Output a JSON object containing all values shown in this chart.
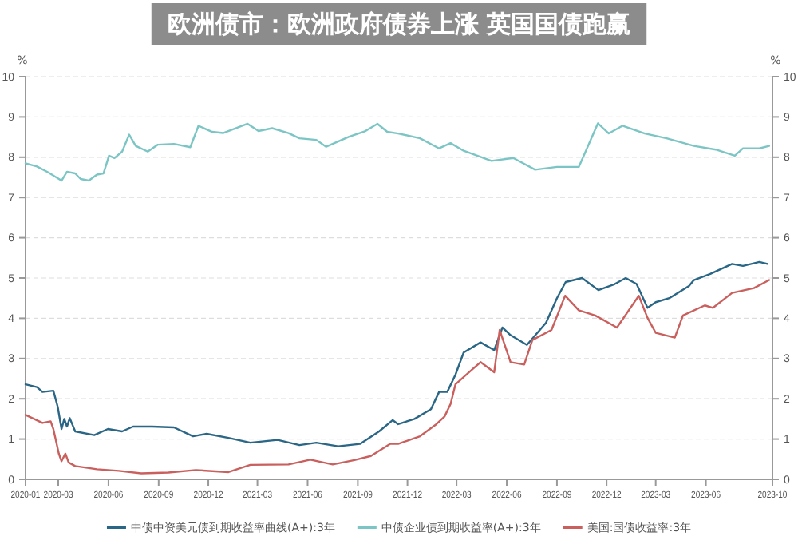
{
  "chart_data": {
    "type": "line",
    "title": "欧洲债市：欧洲政府债券上涨 英国国债跑赢",
    "ylabel": "%",
    "y2label": "%",
    "xlim": [
      "2020-01-01",
      "2023-10-01"
    ],
    "xticks": [
      "2020-01",
      "2020-03",
      "2020-06",
      "2020-09",
      "2020-12",
      "2021-03",
      "2021-06",
      "2021-09",
      "2021-12",
      "2022-03",
      "2022-06",
      "2022-09",
      "2022-12",
      "2023-03",
      "2023-06",
      "2023-10"
    ],
    "ylim": [
      0,
      10
    ],
    "yticks": [
      0,
      1,
      2,
      3,
      4,
      5,
      6,
      7,
      8,
      9,
      10
    ],
    "y2lim": [
      0,
      10
    ],
    "y2ticks": [
      0,
      1,
      2,
      3,
      4,
      5,
      6,
      7,
      8,
      9,
      10
    ],
    "grid": "y",
    "legend": "bottom",
    "marker": "none",
    "line_style": "solid",
    "series": [
      {
        "name": "中债中资美元债到期收益率曲线(A+):3年",
        "color": "#2a6685",
        "x": [
          "2020-01-01",
          "2020-01-22",
          "2020-02-01",
          "2020-02-21",
          "2020-02-29",
          "2020-03-07",
          "2020-03-12",
          "2020-03-17",
          "2020-03-22",
          "2020-04-01",
          "2020-05-06",
          "2020-05-31",
          "2020-06-26",
          "2020-07-16",
          "2020-08-20",
          "2020-09-29",
          "2020-11-03",
          "2020-11-28",
          "2021-01-07",
          "2021-02-16",
          "2021-04-07",
          "2021-05-17",
          "2021-06-17",
          "2021-07-27",
          "2021-09-05",
          "2021-10-10",
          "2021-11-04",
          "2021-11-14",
          "2021-12-14",
          "2022-01-13",
          "2022-01-28",
          "2022-02-12",
          "2022-02-27",
          "2022-03-14",
          "2022-04-14",
          "2022-05-09",
          "2022-05-24",
          "2022-06-08",
          "2022-07-08",
          "2022-08-12",
          "2022-09-01",
          "2022-09-17",
          "2022-10-17",
          "2022-11-16",
          "2022-12-16",
          "2023-01-05",
          "2023-01-25",
          "2023-02-14",
          "2023-03-01",
          "2023-03-26",
          "2023-05-01",
          "2023-05-10",
          "2023-06-09",
          "2023-07-19",
          "2023-08-08",
          "2023-09-07",
          "2023-09-22"
        ],
        "values": [
          2.36,
          2.29,
          2.17,
          2.2,
          1.8,
          1.25,
          1.5,
          1.31,
          1.52,
          1.19,
          1.1,
          1.25,
          1.19,
          1.31,
          1.31,
          1.29,
          1.07,
          1.13,
          1.03,
          0.91,
          0.98,
          0.85,
          0.91,
          0.82,
          0.88,
          1.19,
          1.47,
          1.37,
          1.5,
          1.74,
          2.17,
          2.17,
          2.6,
          3.15,
          3.4,
          3.21,
          3.77,
          3.58,
          3.34,
          3.89,
          4.5,
          4.9,
          5.0,
          4.7,
          4.85,
          5.0,
          4.85,
          4.26,
          4.4,
          4.5,
          4.8,
          4.95,
          5.1,
          5.35,
          5.3,
          5.4,
          5.35
        ]
      },
      {
        "name": "中债企业债到期收益率(A+):3年",
        "color": "#7cc5c5",
        "x": [
          "2020-01-01",
          "2020-01-22",
          "2020-02-11",
          "2020-03-07",
          "2020-03-17",
          "2020-04-01",
          "2020-04-11",
          "2020-04-26",
          "2020-05-11",
          "2020-05-23",
          "2020-06-02",
          "2020-06-12",
          "2020-06-26",
          "2020-07-09",
          "2020-07-21",
          "2020-08-12",
          "2020-08-30",
          "2020-09-29",
          "2020-10-29",
          "2020-11-13",
          "2020-12-08",
          "2020-12-28",
          "2021-02-11",
          "2021-03-03",
          "2021-03-28",
          "2021-04-27",
          "2021-05-17",
          "2021-06-17",
          "2021-07-05",
          "2021-08-16",
          "2021-09-15",
          "2021-10-07",
          "2021-10-25",
          "2021-11-14",
          "2021-12-24",
          "2022-01-28",
          "2022-02-18",
          "2022-03-14",
          "2022-05-04",
          "2022-06-13",
          "2022-07-23",
          "2022-09-01",
          "2022-10-11",
          "2022-10-26",
          "2022-11-15",
          "2022-12-05",
          "2022-12-30",
          "2023-02-09",
          "2023-03-21",
          "2023-05-10",
          "2023-06-19",
          "2023-07-24",
          "2023-08-08",
          "2023-09-07",
          "2023-09-25"
        ],
        "values": [
          7.85,
          7.77,
          7.63,
          7.42,
          7.64,
          7.6,
          7.46,
          7.42,
          7.57,
          7.6,
          8.04,
          7.98,
          8.14,
          8.56,
          8.28,
          8.14,
          8.31,
          8.33,
          8.25,
          8.78,
          8.63,
          8.6,
          8.83,
          8.65,
          8.72,
          8.6,
          8.47,
          8.43,
          8.26,
          8.51,
          8.65,
          8.83,
          8.63,
          8.59,
          8.47,
          8.22,
          8.35,
          8.16,
          7.91,
          7.98,
          7.69,
          7.76,
          7.76,
          8.22,
          8.84,
          8.59,
          8.78,
          8.59,
          8.47,
          8.28,
          8.19,
          8.04,
          8.22,
          8.22,
          8.28
        ]
      },
      {
        "name": "美国:国债收益率:3年",
        "color": "#c9605e",
        "x": [
          "2020-01-01",
          "2020-02-01",
          "2020-02-16",
          "2020-02-21",
          "2020-03-02",
          "2020-03-07",
          "2020-03-14",
          "2020-03-20",
          "2020-04-01",
          "2020-05-11",
          "2020-06-20",
          "2020-07-31",
          "2020-09-19",
          "2020-11-08",
          "2021-01-07",
          "2021-02-16",
          "2021-04-27",
          "2021-06-06",
          "2021-07-17",
          "2021-08-26",
          "2021-09-25",
          "2021-10-30",
          "2021-11-14",
          "2021-12-24",
          "2022-01-23",
          "2022-02-07",
          "2022-02-18",
          "2022-02-27",
          "2022-03-24",
          "2022-04-14",
          "2022-05-09",
          "2022-05-19",
          "2022-06-08",
          "2022-07-03",
          "2022-07-18",
          "2022-08-22",
          "2022-09-16",
          "2022-10-11",
          "2022-11-10",
          "2022-12-20",
          "2023-01-29",
          "2023-02-14",
          "2023-03-01",
          "2023-04-05",
          "2023-04-20",
          "2023-05-30",
          "2023-06-14",
          "2023-07-19",
          "2023-08-28",
          "2023-09-25"
        ],
        "values": [
          1.6,
          1.4,
          1.44,
          1.25,
          0.64,
          0.45,
          0.64,
          0.42,
          0.33,
          0.25,
          0.21,
          0.15,
          0.17,
          0.23,
          0.18,
          0.36,
          0.37,
          0.49,
          0.37,
          0.48,
          0.58,
          0.88,
          0.88,
          1.07,
          1.37,
          1.56,
          1.87,
          2.36,
          2.66,
          2.91,
          2.66,
          3.71,
          2.91,
          2.85,
          3.46,
          3.71,
          4.56,
          4.2,
          4.07,
          3.77,
          4.56,
          4.01,
          3.64,
          3.52,
          4.07,
          4.32,
          4.26,
          4.63,
          4.75,
          4.95
        ]
      }
    ]
  }
}
